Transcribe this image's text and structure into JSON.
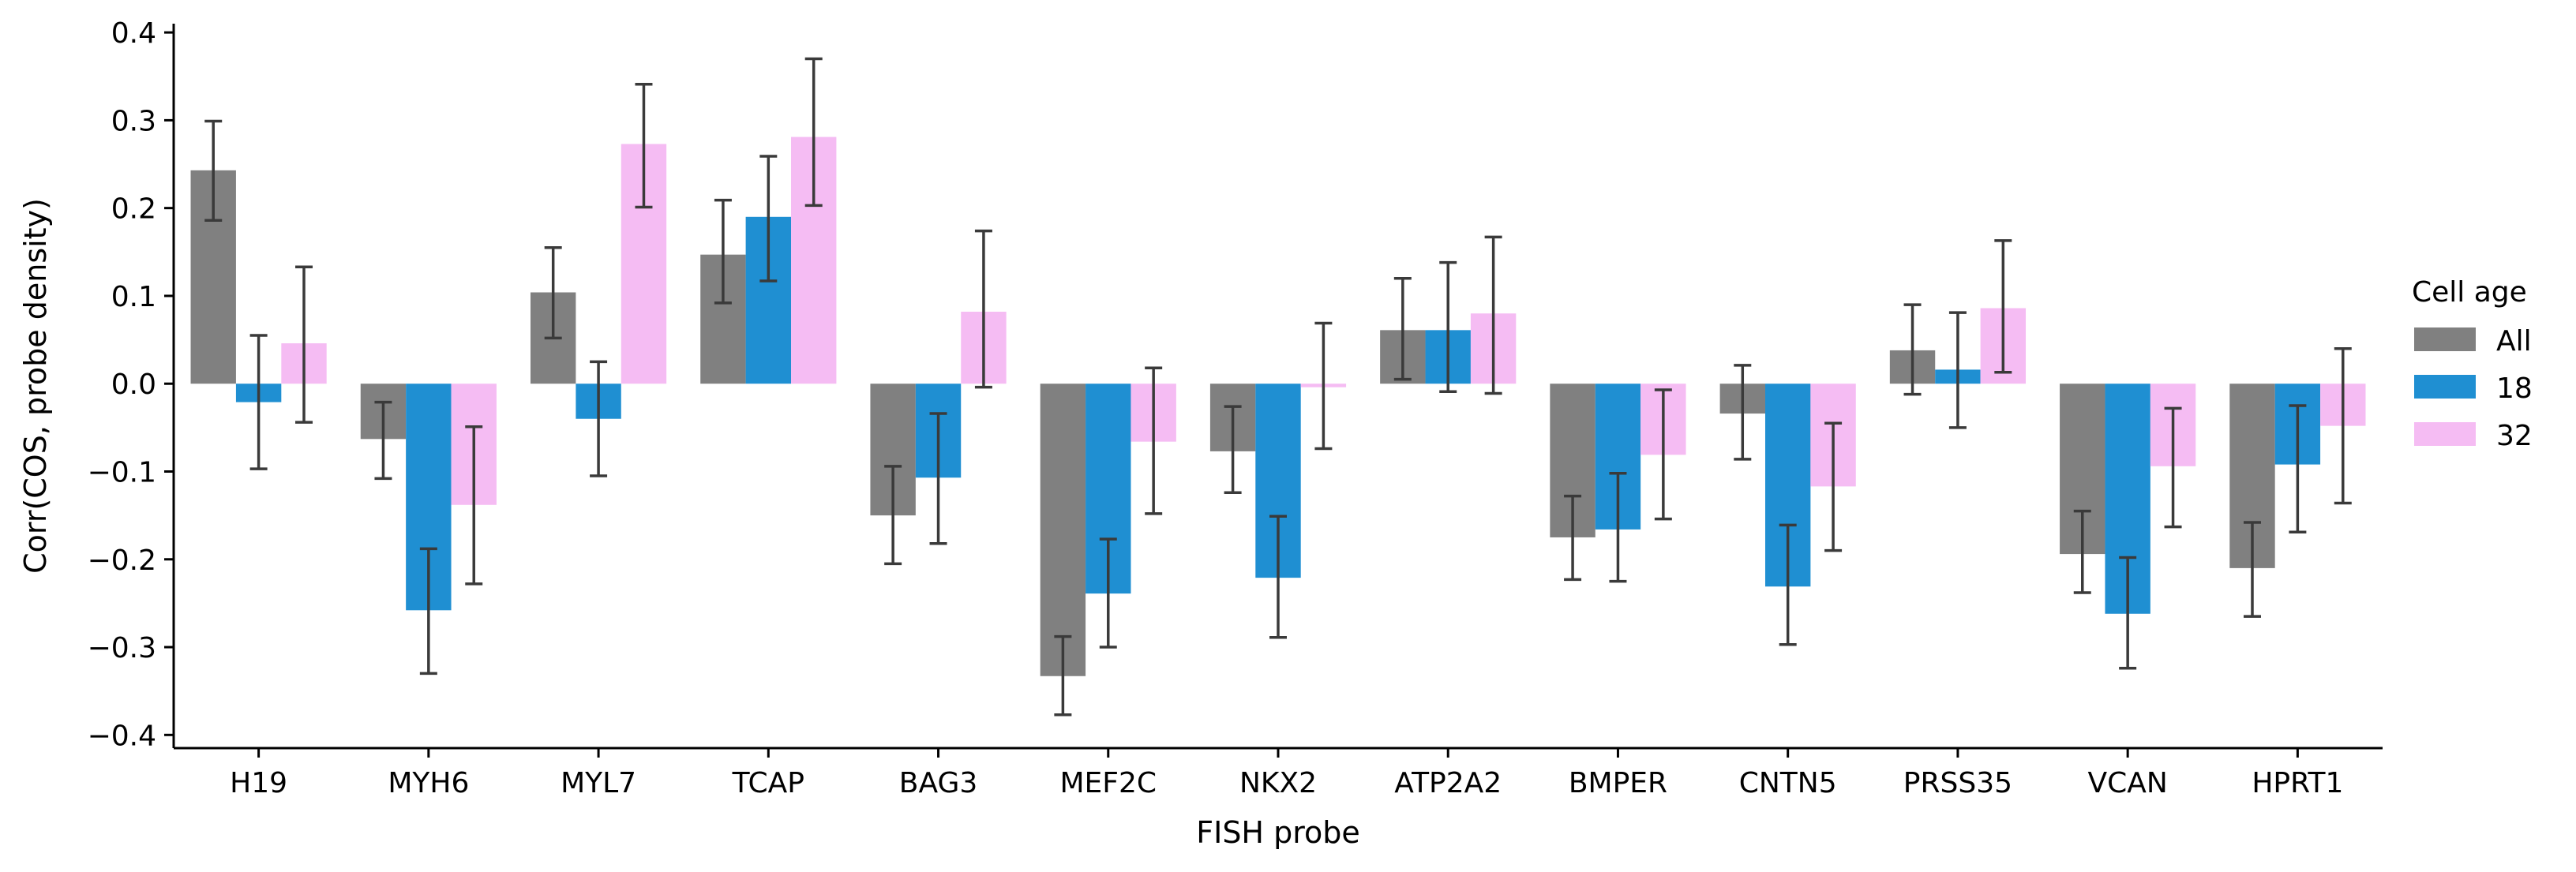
{
  "chart_data": {
    "type": "bar",
    "xlabel": "FISH probe",
    "ylabel": "Corr(COS, probe density)",
    "ylim": [
      -0.415,
      0.41
    ],
    "yticks": [
      -0.4,
      -0.3,
      -0.2,
      -0.1,
      0.0,
      0.1,
      0.2,
      0.3,
      0.4
    ],
    "ytick_labels": [
      "−0.4",
      "−0.3",
      "−0.2",
      "−0.1",
      "0.0",
      "0.1",
      "0.2",
      "0.3",
      "0.4"
    ],
    "grid": false,
    "legend_position": "right",
    "legend_title": "Cell age",
    "categories": [
      "H19",
      "MYH6",
      "MYL7",
      "TCAP",
      "BAG3",
      "MEF2C",
      "NKX2",
      "ATP2A2",
      "BMPER",
      "CNTN5",
      "PRSS35",
      "VCAN",
      "HPRT1"
    ],
    "series": [
      {
        "name": "All",
        "color": "#808080",
        "values": [
          0.243,
          -0.063,
          0.104,
          0.147,
          -0.15,
          -0.333,
          -0.077,
          0.061,
          -0.175,
          -0.034,
          0.038,
          -0.194,
          -0.21
        ],
        "err_low": [
          0.186,
          -0.108,
          0.052,
          0.092,
          -0.205,
          -0.377,
          -0.124,
          0.005,
          -0.223,
          -0.086,
          -0.012,
          -0.238,
          -0.265
        ],
        "err_high": [
          0.299,
          -0.021,
          0.155,
          0.209,
          -0.094,
          -0.288,
          -0.026,
          0.12,
          -0.128,
          0.021,
          0.09,
          -0.145,
          -0.158
        ]
      },
      {
        "name": "18",
        "color": "#1f8fd2",
        "values": [
          -0.021,
          -0.258,
          -0.04,
          0.19,
          -0.107,
          -0.239,
          -0.221,
          0.061,
          -0.166,
          -0.231,
          0.016,
          -0.262,
          -0.092
        ],
        "err_low": [
          -0.097,
          -0.33,
          -0.105,
          0.117,
          -0.182,
          -0.3,
          -0.289,
          -0.009,
          -0.225,
          -0.297,
          -0.05,
          -0.324,
          -0.169
        ],
        "err_high": [
          0.055,
          -0.188,
          0.025,
          0.259,
          -0.034,
          -0.177,
          -0.151,
          0.138,
          -0.102,
          -0.161,
          0.081,
          -0.198,
          -0.025
        ]
      },
      {
        "name": "32",
        "color": "#f5bcf3",
        "values": [
          0.046,
          -0.138,
          0.273,
          0.281,
          0.082,
          -0.066,
          -0.004,
          0.08,
          -0.081,
          -0.117,
          0.086,
          -0.094,
          -0.048
        ],
        "err_low": [
          -0.044,
          -0.228,
          0.201,
          0.203,
          -0.004,
          -0.148,
          -0.074,
          -0.011,
          -0.154,
          -0.19,
          0.013,
          -0.163,
          -0.136
        ],
        "err_high": [
          0.133,
          -0.049,
          0.341,
          0.37,
          0.174,
          0.018,
          0.069,
          0.167,
          -0.007,
          -0.045,
          0.163,
          -0.028,
          0.04
        ]
      }
    ]
  }
}
